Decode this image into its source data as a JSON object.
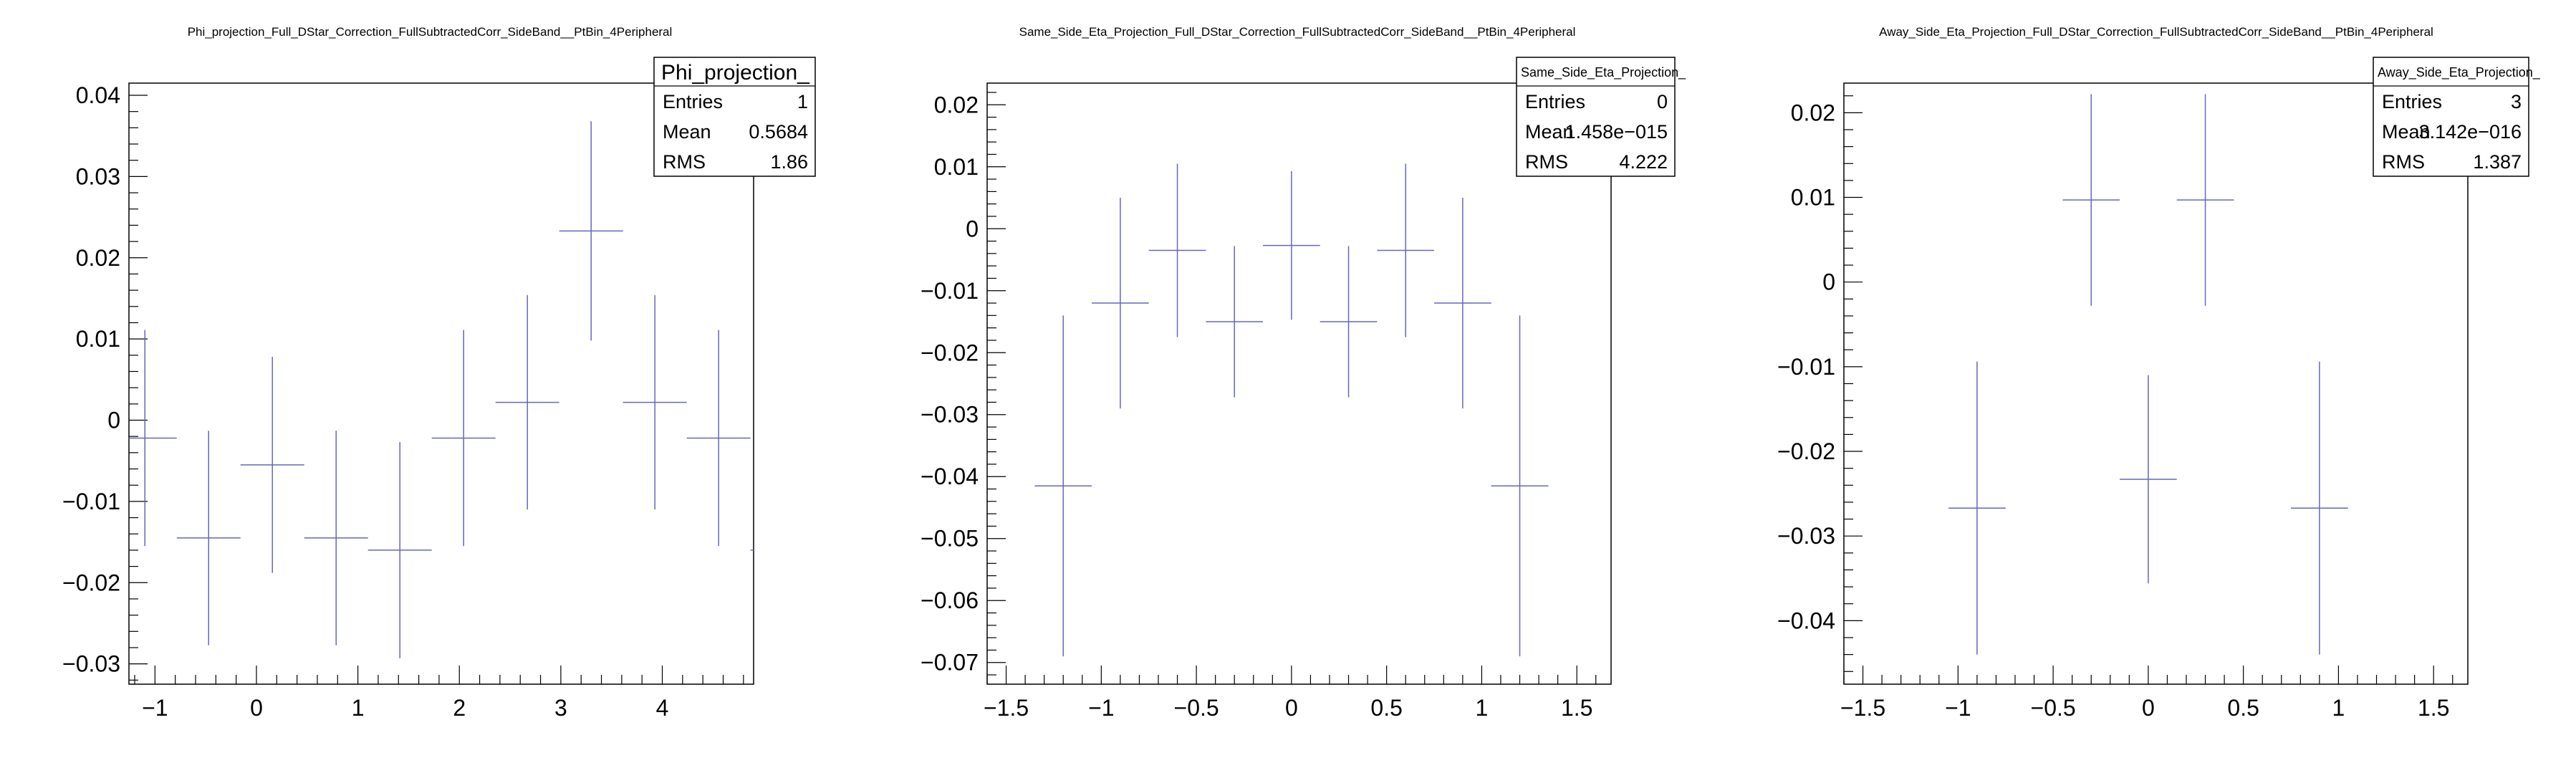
{
  "colors": {
    "marker": "#6666bb",
    "axis": "#000000",
    "background": "#ffffff"
  },
  "chart_data": [
    {
      "type": "scatter",
      "title": "Phi_projection_Full_DStar_Correction_FullSubtractedCorr_SideBand__PtBin_4Peripheral",
      "xlim": [
        -1.2566,
        4.9
      ],
      "ylim": [
        -0.0325,
        0.0415
      ],
      "x_ticks": [
        -1,
        0,
        1,
        2,
        3,
        4
      ],
      "x_tick_labels": [
        "−1",
        "0",
        "1",
        "2",
        "3",
        "4"
      ],
      "y_ticks": [
        -0.03,
        -0.02,
        -0.01,
        0,
        0.01,
        0.02,
        0.03,
        0.04
      ],
      "y_tick_labels": [
        "−0.03",
        "−0.02",
        "−0.01",
        "0",
        "0.01",
        "0.02",
        "0.03",
        "0.04"
      ],
      "x_minor_step": 0.2,
      "y_minor_step": 0.002,
      "x": [
        -1.0996,
        -0.4712,
        0.1571,
        0.7854,
        1.4137,
        2.042,
        2.6704,
        3.2987,
        3.927,
        4.5553,
        5.1836
      ],
      "xerr": [
        0.3142,
        0.3142,
        0.3142,
        0.3142,
        0.3142,
        0.3142,
        0.3142,
        0.3142,
        0.3142,
        0.3142,
        0.3142
      ],
      "y": [
        -0.0022,
        -0.0145,
        -0.0055,
        -0.0145,
        -0.016,
        -0.0022,
        0.0022,
        0.0233,
        0.0022,
        -0.0022,
        -0.016
      ],
      "yerr": [
        0.0133,
        0.0132,
        0.0133,
        0.0132,
        0.0133,
        0.0133,
        0.0132,
        0.0135,
        0.0132,
        0.0133,
        0.0133
      ],
      "stats": {
        "title": "Phi_projection_",
        "rows": [
          {
            "label": "Entries",
            "value": "1"
          },
          {
            "label": "Mean",
            "value": "0.5684"
          },
          {
            "label": "RMS",
            "value": "1.86"
          }
        ]
      }
    },
    {
      "type": "scatter",
      "title": "Same_Side_Eta_Projection_Full_DStar_Correction_FullSubtractedCorr_SideBand__PtBin_4Peripheral",
      "xlim": [
        -1.6,
        1.68
      ],
      "ylim": [
        -0.0735,
        0.0235
      ],
      "x_ticks": [
        -1.5,
        -1,
        -0.5,
        0,
        0.5,
        1,
        1.5
      ],
      "x_tick_labels": [
        "−1.5",
        "−1",
        "−0.5",
        "0",
        "0.5",
        "1",
        "1.5"
      ],
      "y_ticks": [
        -0.07,
        -0.06,
        -0.05,
        -0.04,
        -0.03,
        -0.02,
        -0.01,
        0,
        0.01,
        0.02
      ],
      "y_tick_labels": [
        "−0.07",
        "−0.06",
        "−0.05",
        "−0.04",
        "−0.03",
        "−0.02",
        "−0.01",
        "0",
        "0.01",
        "0.02"
      ],
      "x_minor_step": 0.1,
      "y_minor_step": 0.002,
      "x": [
        -1.2,
        -0.9,
        -0.6,
        -0.3,
        0,
        0.3,
        0.6,
        0.9,
        1.2
      ],
      "xerr": [
        0.15,
        0.15,
        0.15,
        0.15,
        0.15,
        0.15,
        0.15,
        0.15,
        0.15
      ],
      "y": [
        -0.0415,
        -0.012,
        -0.0035,
        -0.015,
        -0.0027,
        -0.015,
        -0.0035,
        -0.012,
        -0.0415
      ],
      "yerr": [
        0.0275,
        0.017,
        0.014,
        0.0122,
        0.012,
        0.0122,
        0.014,
        0.017,
        0.0275
      ],
      "stats": {
        "title": "Same_Side_Eta_Projection_",
        "rows": [
          {
            "label": "Entries",
            "value": "0"
          },
          {
            "label": "Mean",
            "value": "1.458e−015"
          },
          {
            "label": "RMS",
            "value": "4.222"
          }
        ]
      }
    },
    {
      "type": "scatter",
      "title": "Away_Side_Eta_Projection_Full_DStar_Correction_FullSubtractedCorr_SideBand__PtBin_4Peripheral",
      "xlim": [
        -1.6,
        1.68
      ],
      "ylim": [
        -0.0475,
        0.0235
      ],
      "x_ticks": [
        -1.5,
        -1,
        -0.5,
        0,
        0.5,
        1,
        1.5
      ],
      "x_tick_labels": [
        "−1.5",
        "−1",
        "−0.5",
        "0",
        "0.5",
        "1",
        "1.5"
      ],
      "y_ticks": [
        -0.04,
        -0.03,
        -0.02,
        -0.01,
        0,
        0.01,
        0.02
      ],
      "y_tick_labels": [
        "−0.04",
        "−0.03",
        "−0.02",
        "−0.01",
        "0",
        "0.01",
        "0.02"
      ],
      "x_minor_step": 0.1,
      "y_minor_step": 0.002,
      "x": [
        -0.9,
        -0.3,
        0,
        0.3,
        0.9
      ],
      "xerr": [
        0.15,
        0.15,
        0.15,
        0.15,
        0.15
      ],
      "y": [
        -0.0267,
        0.0097,
        -0.0233,
        0.0097,
        -0.0267
      ],
      "yerr": [
        0.0173,
        0.0125,
        0.0123,
        0.0125,
        0.0173
      ],
      "stats": {
        "title": "Away_Side_Eta_Projection_",
        "rows": [
          {
            "label": "Entries",
            "value": "3"
          },
          {
            "label": "Mean",
            "value": "3.142e−016"
          },
          {
            "label": "RMS",
            "value": "1.387"
          }
        ]
      }
    }
  ]
}
